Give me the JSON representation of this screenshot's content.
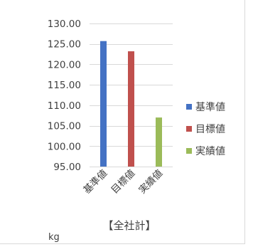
{
  "chart_data": {
    "type": "bar",
    "title": "【全社計】",
    "unit_label": "kg",
    "categories": [
      "基準値",
      "目標値",
      "実績値"
    ],
    "values": [
      125.7,
      123.2,
      107.0
    ],
    "colors": [
      "#4472c4",
      "#c0504d",
      "#9bbb59"
    ],
    "ylim": [
      95,
      130
    ],
    "yticks": [
      "95.00",
      "100.00",
      "105.00",
      "110.00",
      "115.00",
      "120.00",
      "125.00",
      "130.00"
    ],
    "grid": true,
    "legend": {
      "placement": "right",
      "entries": [
        "基準値",
        "目標値",
        "実績値"
      ]
    }
  }
}
